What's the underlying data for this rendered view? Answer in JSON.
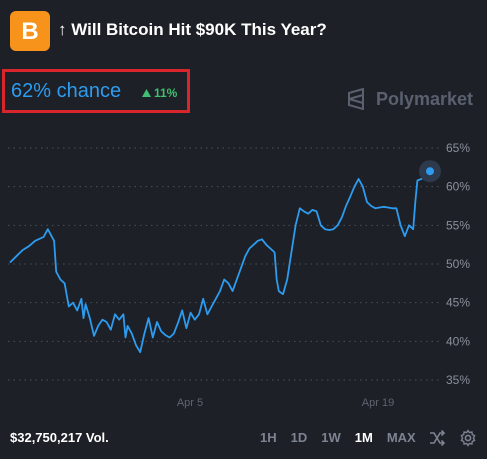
{
  "header": {
    "logo_glyph": "B",
    "title": "↑ Will Bitcoin Hit $90K This Year?"
  },
  "stats": {
    "chance": "62% chance",
    "delta": "11%",
    "delta_color": "#3fbf6f",
    "accent": "#2d9cf0",
    "brand": "Polymarket"
  },
  "chart_data": {
    "type": "line",
    "y_ticks": [
      "65%",
      "60%",
      "55%",
      "50%",
      "45%",
      "40%",
      "35%"
    ],
    "x_ticks": [
      "Apr 5",
      "Apr 19"
    ],
    "ylim": [
      35,
      65
    ],
    "grid": true,
    "series": [
      {
        "x": [
          0,
          1.5,
          3,
          4.5,
          6,
          8,
          9,
          10.5,
          11,
          12,
          13,
          13.5,
          14,
          15,
          16,
          17,
          17.5,
          18,
          19,
          20,
          21,
          22,
          23,
          24,
          25,
          26,
          27,
          27.5,
          28,
          29,
          30,
          31,
          32,
          33,
          34,
          35,
          36,
          37,
          38,
          39,
          40,
          41,
          42,
          43,
          44,
          45,
          46,
          47,
          48,
          49,
          50,
          51,
          52,
          53,
          54,
          55,
          56,
          57,
          58,
          59,
          60,
          61,
          62,
          63,
          63.5,
          64,
          65,
          66,
          67,
          68,
          69,
          70,
          71,
          72,
          73,
          74,
          75,
          76,
          77,
          78,
          79,
          80,
          81,
          82,
          83,
          84,
          85,
          86,
          87,
          88,
          89,
          90,
          91,
          92,
          93,
          94,
          95,
          96,
          96.5,
          97,
          98,
          99,
          100
        ],
        "y": [
          50.2,
          51,
          51.8,
          52.3,
          53,
          53.5,
          54.5,
          53,
          49,
          48,
          47.5,
          46,
          44.5,
          45,
          44,
          45.5,
          43,
          44.8,
          43,
          40.7,
          42,
          42.8,
          42.5,
          41.5,
          43.5,
          42.8,
          43.5,
          40.5,
          42,
          41,
          39.5,
          38.6,
          41,
          43,
          40.5,
          42.5,
          41.3,
          40.8,
          40.5,
          41,
          42.4,
          44,
          41.7,
          43.7,
          42.8,
          43.5,
          45.5,
          43.5,
          44.5,
          45.5,
          46.5,
          48,
          47.5,
          46.5,
          48,
          49.5,
          51,
          52,
          52.5,
          53,
          53.2,
          52.5,
          52,
          51.5,
          48,
          46.5,
          46.1,
          48,
          51.5,
          55,
          57.2,
          56.8,
          56.5,
          57,
          56.8,
          55,
          54.5,
          54.4,
          54.5,
          55,
          56,
          57.5,
          58.7,
          60,
          61,
          60,
          58,
          57.5,
          57.2,
          57.3,
          57.4,
          57.3,
          57.2,
          57.2,
          55,
          53.6,
          55,
          54.5,
          58,
          60.8,
          61,
          61.5,
          61.8
        ]
      }
    ],
    "endpoint_value": 62
  },
  "footer": {
    "volume": "$32,750,217 Vol.",
    "ranges": [
      "1H",
      "1D",
      "1W",
      "1M",
      "MAX"
    ],
    "active_range": "1M"
  },
  "icons": {
    "shuffle": "shuffle-icon",
    "settings": "gear-icon"
  }
}
